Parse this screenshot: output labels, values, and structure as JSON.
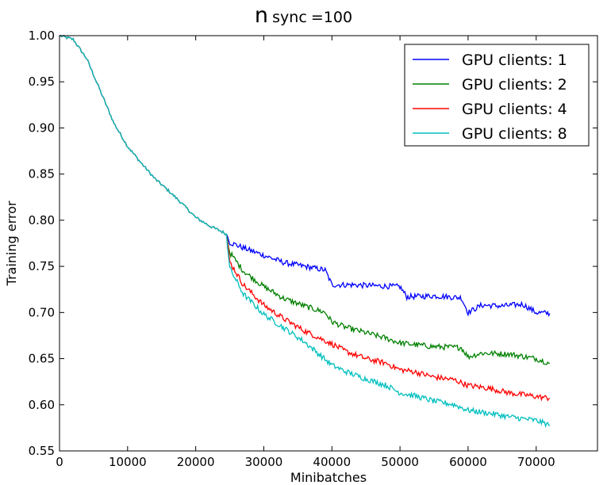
{
  "chart_data": {
    "type": "line",
    "title": {
      "main": "n",
      "subscript": "sync",
      "suffix": "=100"
    },
    "xlabel": "Minibatches",
    "ylabel": "Training error",
    "xlim": [
      0,
      79000
    ],
    "ylim": [
      0.55,
      1.0
    ],
    "xticks": [
      0,
      10000,
      20000,
      30000,
      40000,
      50000,
      60000,
      70000
    ],
    "yticks": [
      0.55,
      0.6,
      0.65,
      0.7,
      0.75,
      0.8,
      0.85,
      0.9,
      0.95,
      1.0
    ],
    "xtick_labels": [
      "0",
      "10000",
      "20000",
      "30000",
      "40000",
      "50000",
      "60000",
      "70000"
    ],
    "ytick_labels": [
      "0.55",
      "0.60",
      "0.65",
      "0.70",
      "0.75",
      "0.80",
      "0.85",
      "0.90",
      "0.95",
      "1.00"
    ],
    "grid": false,
    "legend": "top-right",
    "shared_prefix": {
      "x": [
        0,
        2000,
        4000,
        6000,
        8000,
        10000,
        12000,
        14000,
        16000,
        18000,
        20000,
        22000,
        24000,
        24500
      ],
      "y": [
        1.0,
        0.996,
        0.975,
        0.94,
        0.905,
        0.88,
        0.862,
        0.845,
        0.832,
        0.818,
        0.803,
        0.794,
        0.787,
        0.785
      ]
    },
    "series": [
      {
        "name": "GPU clients: 1",
        "color": "#0000ff",
        "x": [
          24500,
          25000,
          27000,
          30000,
          33000,
          36000,
          39000,
          40000,
          43000,
          46000,
          50000,
          51000,
          55000,
          59000,
          60000,
          62000,
          65000,
          68000,
          70000,
          72000
        ],
        "y": [
          0.785,
          0.776,
          0.77,
          0.762,
          0.754,
          0.75,
          0.746,
          0.73,
          0.73,
          0.729,
          0.728,
          0.717,
          0.718,
          0.716,
          0.7,
          0.708,
          0.707,
          0.709,
          0.7,
          0.699
        ]
      },
      {
        "name": "GPU clients: 2",
        "color": "#008000",
        "x": [
          24500,
          25000,
          27000,
          30000,
          33000,
          36000,
          39000,
          40000,
          42000,
          45000,
          48000,
          50000,
          55000,
          59000,
          60000,
          62000,
          66000,
          70000,
          72000
        ],
        "y": [
          0.785,
          0.765,
          0.745,
          0.728,
          0.715,
          0.707,
          0.7,
          0.69,
          0.684,
          0.678,
          0.672,
          0.667,
          0.663,
          0.662,
          0.652,
          0.656,
          0.655,
          0.65,
          0.645
        ]
      },
      {
        "name": "GPU clients: 4",
        "color": "#ff0000",
        "x": [
          24500,
          25000,
          27000,
          30000,
          33000,
          36000,
          40000,
          42000,
          45000,
          48000,
          50000,
          52000,
          55000,
          58000,
          60000,
          63000,
          66000,
          70000,
          72000
        ],
        "y": [
          0.785,
          0.755,
          0.73,
          0.708,
          0.693,
          0.68,
          0.666,
          0.658,
          0.65,
          0.645,
          0.638,
          0.636,
          0.63,
          0.627,
          0.621,
          0.618,
          0.613,
          0.609,
          0.607
        ]
      },
      {
        "name": "GPU clients: 8",
        "color": "#00bfbf",
        "x": [
          24500,
          25000,
          27000,
          30000,
          33000,
          36000,
          40000,
          42000,
          45000,
          48000,
          50000,
          52000,
          55000,
          58000,
          60000,
          63000,
          66000,
          70000,
          72000
        ],
        "y": [
          0.785,
          0.748,
          0.72,
          0.698,
          0.683,
          0.668,
          0.643,
          0.636,
          0.628,
          0.621,
          0.613,
          0.61,
          0.604,
          0.6,
          0.594,
          0.591,
          0.587,
          0.583,
          0.578
        ]
      }
    ]
  }
}
